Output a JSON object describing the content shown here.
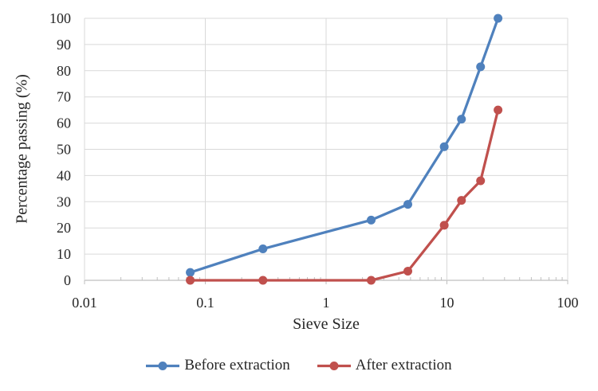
{
  "chart_data": {
    "type": "line",
    "x_scale": "log",
    "x": [
      0.075,
      0.3,
      2.36,
      4.75,
      9.5,
      13.2,
      19,
      26.5
    ],
    "series": [
      {
        "name": "Before extraction",
        "color": "#4F81BD",
        "values": [
          3,
          12,
          23,
          29,
          51,
          61.5,
          81.5,
          100
        ]
      },
      {
        "name": "After extraction",
        "color": "#C0504D",
        "values": [
          0,
          0,
          0,
          3.5,
          21,
          30.5,
          38,
          65
        ]
      }
    ],
    "title": "",
    "xlabel": "Sieve Size",
    "ylabel": "Percentage passing (%)",
    "xlim": [
      0.01,
      100
    ],
    "ylim": [
      0,
      100
    ],
    "y_tick_step": 10,
    "y_tick_labels": [
      "0",
      "10",
      "20",
      "30",
      "40",
      "50",
      "60",
      "70",
      "80",
      "90",
      "100"
    ],
    "x_major_ticks": [
      0.01,
      0.1,
      1,
      10,
      100
    ],
    "x_tick_labels": [
      "0.01",
      "0.1",
      "1",
      "10",
      "100"
    ],
    "grid": true,
    "legend_position": "bottom",
    "marker": "circle",
    "colors": {
      "gridline": "#D9D9D9",
      "axis": "#BFBFBF",
      "text": "#262626",
      "background": "#FFFFFF"
    }
  }
}
